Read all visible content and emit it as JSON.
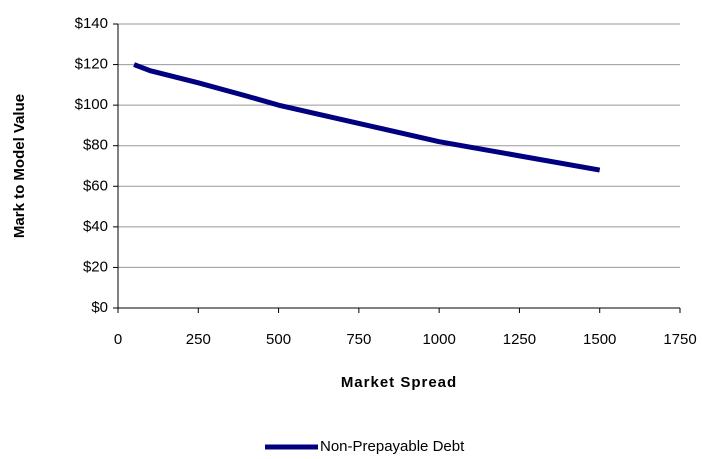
{
  "chart_data": {
    "type": "line",
    "x_label": "Market Spread",
    "y_label": "Mark to Model Value",
    "x": [
      50,
      100,
      250,
      400,
      500,
      750,
      1000,
      1250,
      1500
    ],
    "series": [
      {
        "name": "Non-Prepayable Debt",
        "color": "#000080",
        "values": [
          120,
          117,
          111,
          104.5,
          100,
          91,
          82,
          75,
          68
        ]
      }
    ],
    "xlim": [
      0,
      1750
    ],
    "xticks": [
      0,
      250,
      500,
      750,
      1000,
      1250,
      1500,
      1750
    ],
    "ylim": [
      0,
      140
    ],
    "yticks": [
      {
        "value": 0,
        "label": "$0"
      },
      {
        "value": 20,
        "label": "$20"
      },
      {
        "value": 40,
        "label": "$40"
      },
      {
        "value": 60,
        "label": "$60"
      },
      {
        "value": 80,
        "label": "$80"
      },
      {
        "value": 100,
        "label": "$100"
      },
      {
        "value": 120,
        "label": "$120"
      },
      {
        "value": 140,
        "label": "$140"
      }
    ],
    "grid": true
  }
}
